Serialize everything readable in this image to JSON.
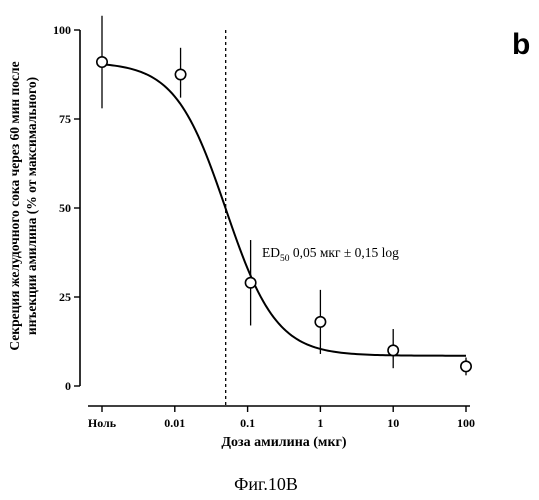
{
  "figure": {
    "panel_letter": "b",
    "caption": "Фиг.10B"
  },
  "chart_data": {
    "type": "scatter",
    "x_scale": "log",
    "xlabel": "Доза амилина (мкг)",
    "ylabel_lines": [
      "Секреция желудочного сока через 60 мин после",
      "инъекции амилина (% от максимального)"
    ],
    "x_tick_labels": [
      "Ноль",
      "0.01",
      "0.1",
      "1",
      "10",
      "100"
    ],
    "x_tick_values": [
      0.001,
      0.01,
      0.1,
      1,
      10,
      100
    ],
    "y_ticks": [
      0,
      25,
      50,
      75,
      100
    ],
    "ylim": [
      0,
      100
    ],
    "xlim": [
      0.001,
      100
    ],
    "grid": false,
    "annotation": {
      "prefix": "ED",
      "subscript": "50",
      "text": " 0,05 мкг ± 0,15 log"
    },
    "ed50_x": 0.05,
    "points": [
      {
        "x": 0.001,
        "y": 91,
        "err_low": 78,
        "err_high": 104
      },
      {
        "x": 0.012,
        "y": 87.5,
        "err_low": 81,
        "err_high": 95
      },
      {
        "x": 0.11,
        "y": 29,
        "err_low": 17,
        "err_high": 41
      },
      {
        "x": 1,
        "y": 18,
        "err_low": 9,
        "err_high": 27
      },
      {
        "x": 10,
        "y": 10,
        "err_low": 5,
        "err_high": 16
      },
      {
        "x": 100,
        "y": 5.5,
        "err_low": 3,
        "err_high": 8
      }
    ],
    "fit_curve": {
      "model": "sigmoid",
      "top": 91,
      "bottom": 8.5,
      "log_ec50": -1.3,
      "hill_slope": 1.25
    }
  }
}
